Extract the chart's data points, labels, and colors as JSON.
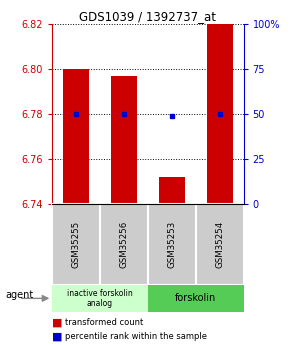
{
  "title": "GDS1039 / 1392737_at",
  "categories": [
    "GSM35255",
    "GSM35256",
    "GSM35253",
    "GSM35254"
  ],
  "bar_values": [
    6.8,
    6.797,
    6.752,
    6.82
  ],
  "bar_bottom": 6.74,
  "blue_dot_values": [
    6.78,
    6.78,
    6.779,
    6.78
  ],
  "ylim": [
    6.74,
    6.82
  ],
  "yticks_left": [
    6.74,
    6.76,
    6.78,
    6.8,
    6.82
  ],
  "ytick_labels_left": [
    "6.74",
    "6.76",
    "6.78",
    "6.80",
    "6.82"
  ],
  "yticks_right": [
    0,
    25,
    50,
    75,
    100
  ],
  "ytick_labels_right": [
    "0",
    "25",
    "50",
    "75",
    "100%"
  ],
  "bar_color": "#cc0000",
  "dot_color": "#0000cc",
  "left_tick_color": "#cc0000",
  "right_tick_color": "#0000cc",
  "group1_label": "inactive forskolin\nanalog",
  "group2_label": "forskolin",
  "agent_label": "agent",
  "legend_bar_label": "transformed count",
  "legend_dot_label": "percentile rank within the sample",
  "group1_indices": [
    0,
    1
  ],
  "group2_indices": [
    2,
    3
  ],
  "group1_color": "#ccffcc",
  "group2_color": "#55cc55",
  "sample_box_color": "#cccccc",
  "bar_width": 0.55
}
